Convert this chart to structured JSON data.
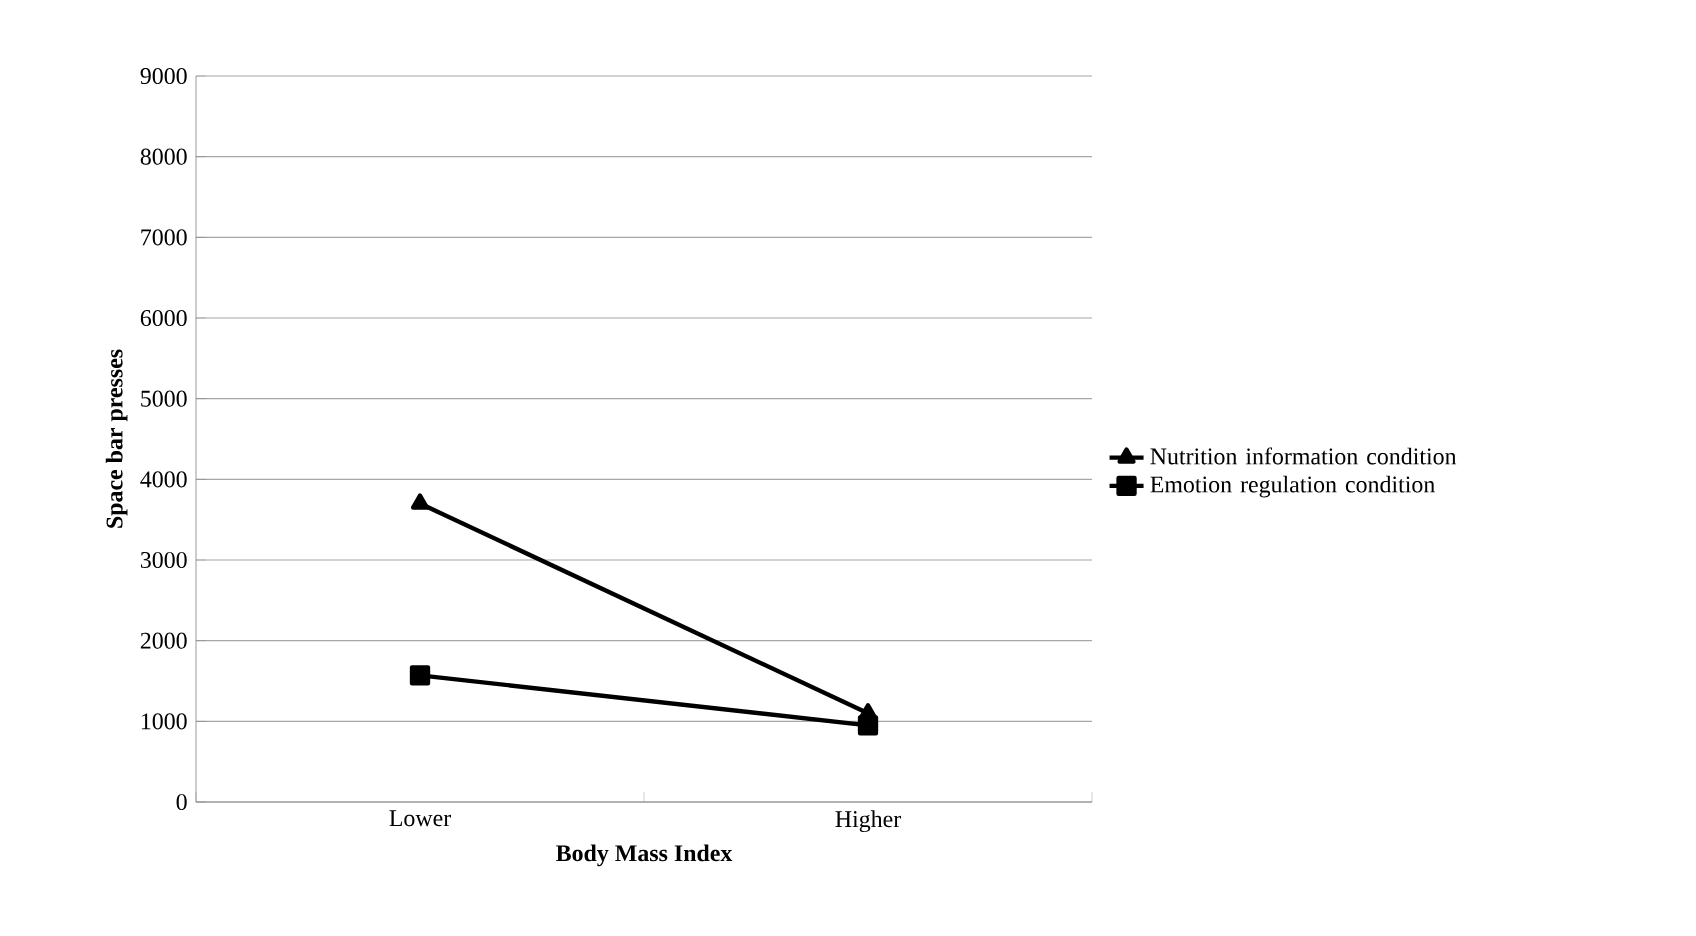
{
  "chart_data": {
    "type": "line",
    "xlabel": "Body Mass Index",
    "ylabel": "Space bar presses",
    "categories": [
      "Lower",
      "Higher"
    ],
    "series": [
      {
        "name": "Nutrition information condition",
        "color": "#000000",
        "marker": "triangle",
        "values": [
          3700,
          1100
        ]
      },
      {
        "name": "Emotion regulation condition",
        "color": "#000000",
        "marker": "square",
        "values": [
          1570,
          950
        ]
      }
    ],
    "ylim": [
      0,
      9000
    ],
    "yticks": [
      0,
      1000,
      2000,
      3000,
      4000,
      5000,
      6000,
      7000,
      8000,
      9000
    ],
    "grid": "y",
    "legend": "right",
    "line_style": "solid"
  }
}
